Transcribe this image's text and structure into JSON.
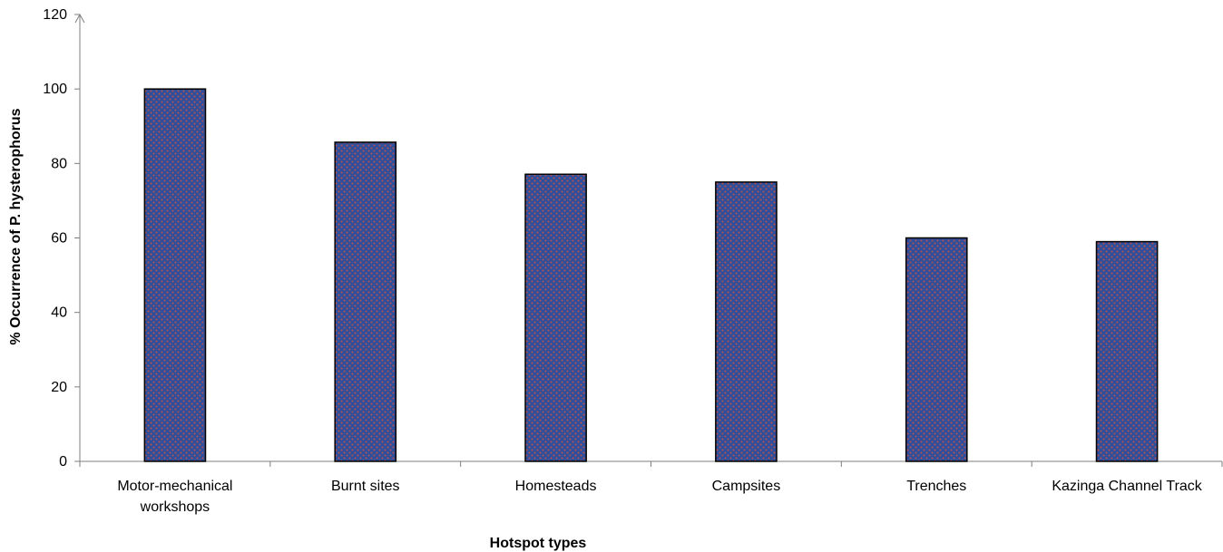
{
  "chart_data": {
    "type": "bar",
    "categories": [
      [
        "Motor-mechanical",
        "workshops"
      ],
      [
        "Burnt sites"
      ],
      [
        "Homesteads"
      ],
      [
        "Campsites"
      ],
      [
        "Trenches"
      ],
      [
        "Kazinga Channel Track"
      ]
    ],
    "values": [
      100,
      85.7,
      77.1,
      75,
      60,
      59
    ],
    "xlabel": "Hotspot types",
    "ylabel": "% Occurrence of P. hysterophorus",
    "ylim": [
      0,
      120
    ],
    "yticks": [
      0,
      20,
      40,
      60,
      80,
      100,
      120
    ],
    "grid": false,
    "legend": "none",
    "bar_fill": "#2f4f9a",
    "bar_pattern_dot": "#c0504d",
    "bar_stroke": "#000000"
  }
}
